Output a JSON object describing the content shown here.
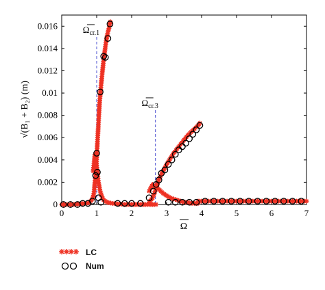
{
  "chart_data": {
    "type": "scatter",
    "xlabel": "Ω",
    "ylabel": "√(B₁ + B₂) (m)",
    "xlim": [
      0,
      7
    ],
    "ylim": [
      0,
      0.017
    ],
    "x_ticks": [
      "0",
      "1",
      "2",
      "3",
      "4",
      "5",
      "6",
      "7"
    ],
    "y_ticks": [
      "0",
      "0.002",
      "0.004",
      "0.006",
      "0.008",
      "0.01",
      "0.012",
      "0.014",
      "0.016"
    ],
    "x_tick_values": [
      0,
      1,
      2,
      3,
      4,
      5,
      6,
      7
    ],
    "y_tick_values": [
      0,
      0.002,
      0.004,
      0.006,
      0.008,
      0.01,
      0.012,
      0.014,
      0.016
    ],
    "grid": false,
    "legend_position": "bottom-left, outside plot",
    "annotations": [
      {
        "text": "Ω",
        "subscript": "cr.1",
        "x_line": 1.0
      },
      {
        "text": "Ω",
        "subscript": "cr.3",
        "x_line": 2.68
      }
    ],
    "series": [
      {
        "name": "LC",
        "marker": "star",
        "color": "#ee3224",
        "curves": [
          {
            "x": [
              0,
              0.3,
              0.5,
              0.7,
              0.8,
              0.88,
              0.92,
              0.95,
              0.98,
              1.0,
              1.02,
              1.05,
              1.08,
              1.12,
              1.16,
              1.2,
              1.25,
              1.3,
              1.35,
              1.39
            ],
            "y": [
              0.0,
              0.0,
              5e-05,
              0.0001,
              0.0002,
              0.0005,
              0.001,
              0.002,
              0.003,
              0.0042,
              0.0055,
              0.0072,
              0.009,
              0.0105,
              0.0118,
              0.013,
              0.0142,
              0.0152,
              0.0158,
              0.0164
            ]
          },
          {
            "x": [
              0.9,
              0.95,
              1.0,
              1.05,
              1.1,
              1.15,
              1.2,
              1.3,
              1.45,
              1.6,
              1.8,
              2.0,
              2.2,
              2.4,
              2.6,
              2.7
            ],
            "y": [
              0.003,
              0.0045,
              0.0035,
              0.002,
              0.0012,
              0.0007,
              0.0004,
              0.0002,
              0.0001,
              5e-05,
              0.0,
              0.0,
              0.0,
              0.0,
              0.0,
              0.0
            ]
          },
          {
            "x": [
              2.5,
              2.6,
              2.65,
              2.7,
              2.75,
              2.8,
              2.9,
              3.0,
              3.1,
              3.2,
              3.3,
              3.4,
              3.5,
              3.6,
              3.7,
              3.8,
              3.9,
              3.95
            ],
            "y": [
              0.0002,
              0.0006,
              0.001,
              0.0015,
              0.002,
              0.0024,
              0.003,
              0.0036,
              0.0041,
              0.0046,
              0.005,
              0.0054,
              0.0058,
              0.0062,
              0.0065,
              0.0068,
              0.0071,
              0.0073
            ]
          },
          {
            "x": [
              2.5,
              2.6,
              2.7,
              2.8,
              2.9,
              3.0,
              3.1,
              3.2,
              3.3,
              3.4,
              3.5,
              3.6,
              3.7,
              3.8,
              3.9
            ],
            "y": [
              0.0012,
              0.0018,
              0.0016,
              0.0013,
              0.001,
              0.0008,
              0.0006,
              0.0005,
              0.0004,
              0.0003,
              0.0002,
              0.0002,
              0.0001,
              0.0001,
              0.0001
            ]
          },
          {
            "x": [
              3.9,
              4.2,
              4.5,
              4.8,
              5.1,
              5.4,
              5.7,
              6.0,
              6.3,
              6.6,
              7.0
            ],
            "y": [
              0.0003,
              0.0003,
              0.0003,
              0.0003,
              0.0003,
              0.0003,
              0.0003,
              0.0003,
              0.0003,
              0.0003,
              0.0003
            ]
          }
        ]
      },
      {
        "name": "Num",
        "marker": "circle",
        "color": "#000000",
        "x": [
          0.05,
          0.25,
          0.45,
          0.6,
          0.75,
          0.88,
          0.97,
          1.0,
          1.02,
          1.1,
          1.2,
          1.25,
          1.32,
          1.38,
          1.05,
          1.12,
          1.6,
          1.8,
          2.0,
          2.25,
          2.5,
          2.62,
          2.7,
          2.78,
          2.85,
          2.95,
          3.05,
          3.15,
          3.25,
          3.35,
          3.45,
          3.55,
          3.65,
          3.75,
          3.85,
          3.95,
          3.05,
          3.25,
          3.45,
          3.65,
          3.85,
          4.1,
          4.35,
          4.6,
          4.85,
          5.1,
          5.35,
          5.6,
          5.85,
          6.1,
          6.35,
          6.6,
          6.85
        ],
        "y": [
          0.0,
          0.0,
          0.0,
          0.0001,
          0.0001,
          0.0003,
          0.0026,
          0.0046,
          0.0029,
          0.0101,
          0.0133,
          0.0132,
          0.0149,
          0.0162,
          0.0006,
          0.0002,
          0.0001,
          0.0001,
          0.0001,
          0.0001,
          0.0006,
          0.0012,
          0.0018,
          0.0022,
          0.0028,
          0.0031,
          0.0036,
          0.004,
          0.0045,
          0.0049,
          0.0052,
          0.0055,
          0.0059,
          0.0063,
          0.0067,
          0.0071,
          0.0002,
          0.0002,
          0.0002,
          0.0002,
          0.0002,
          0.0003,
          0.0003,
          0.0003,
          0.0003,
          0.0003,
          0.0003,
          0.0003,
          0.0003,
          0.0003,
          0.0003,
          0.0003,
          0.0003
        ]
      }
    ]
  }
}
